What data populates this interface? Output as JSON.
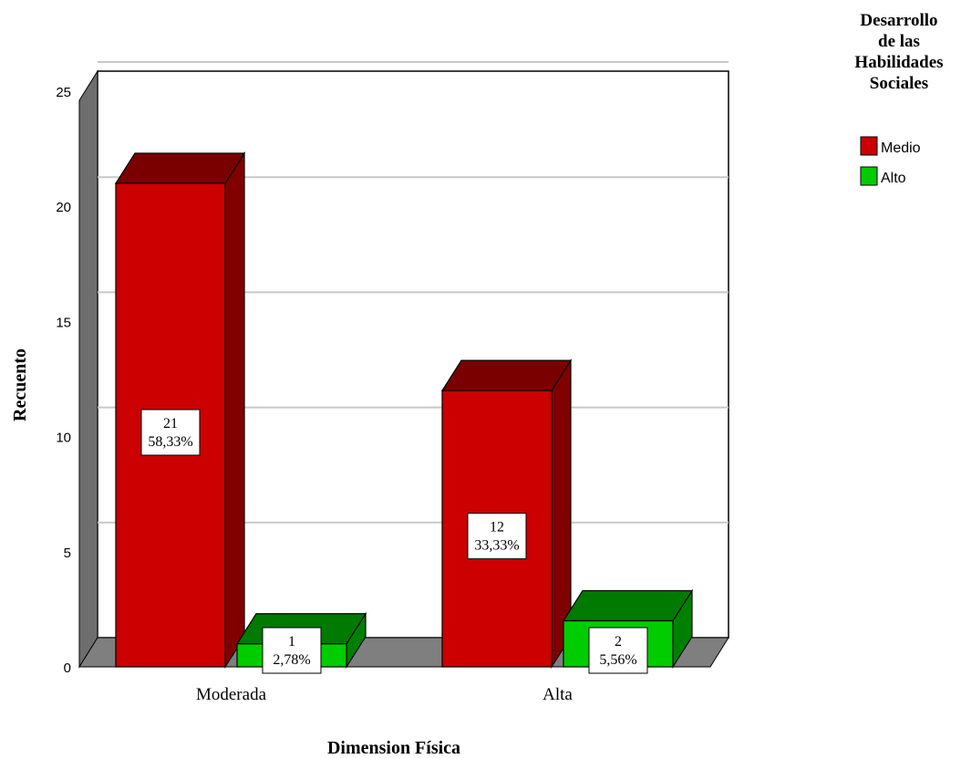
{
  "chart_data": {
    "type": "bar",
    "style": "3d-clustered",
    "categories": [
      "Moderada",
      "Alta"
    ],
    "xlabel": "Dimension Física",
    "ylabel": "Recuento",
    "ylim": [
      0,
      25
    ],
    "yticks": [
      0,
      5,
      10,
      15,
      20,
      25
    ],
    "grid": true,
    "legend": {
      "title_lines": [
        "Desarrollo",
        "de las",
        "Habilidades",
        "Sociales"
      ],
      "placement": "top-right"
    },
    "series": [
      {
        "name": "Medio",
        "color": "#cc0000",
        "top_color": "#7a0000",
        "side_color": "#800000",
        "values": [
          21,
          12
        ],
        "labels": [
          [
            "21",
            "58,33%"
          ],
          [
            "12",
            "33,33%"
          ]
        ]
      },
      {
        "name": "Alto",
        "color": "#00cc00",
        "top_color": "#007a00",
        "side_color": "#008000",
        "values": [
          1,
          2
        ],
        "labels": [
          [
            "1",
            "2,78%"
          ],
          [
            "2",
            "5,56%"
          ]
        ]
      }
    ]
  }
}
